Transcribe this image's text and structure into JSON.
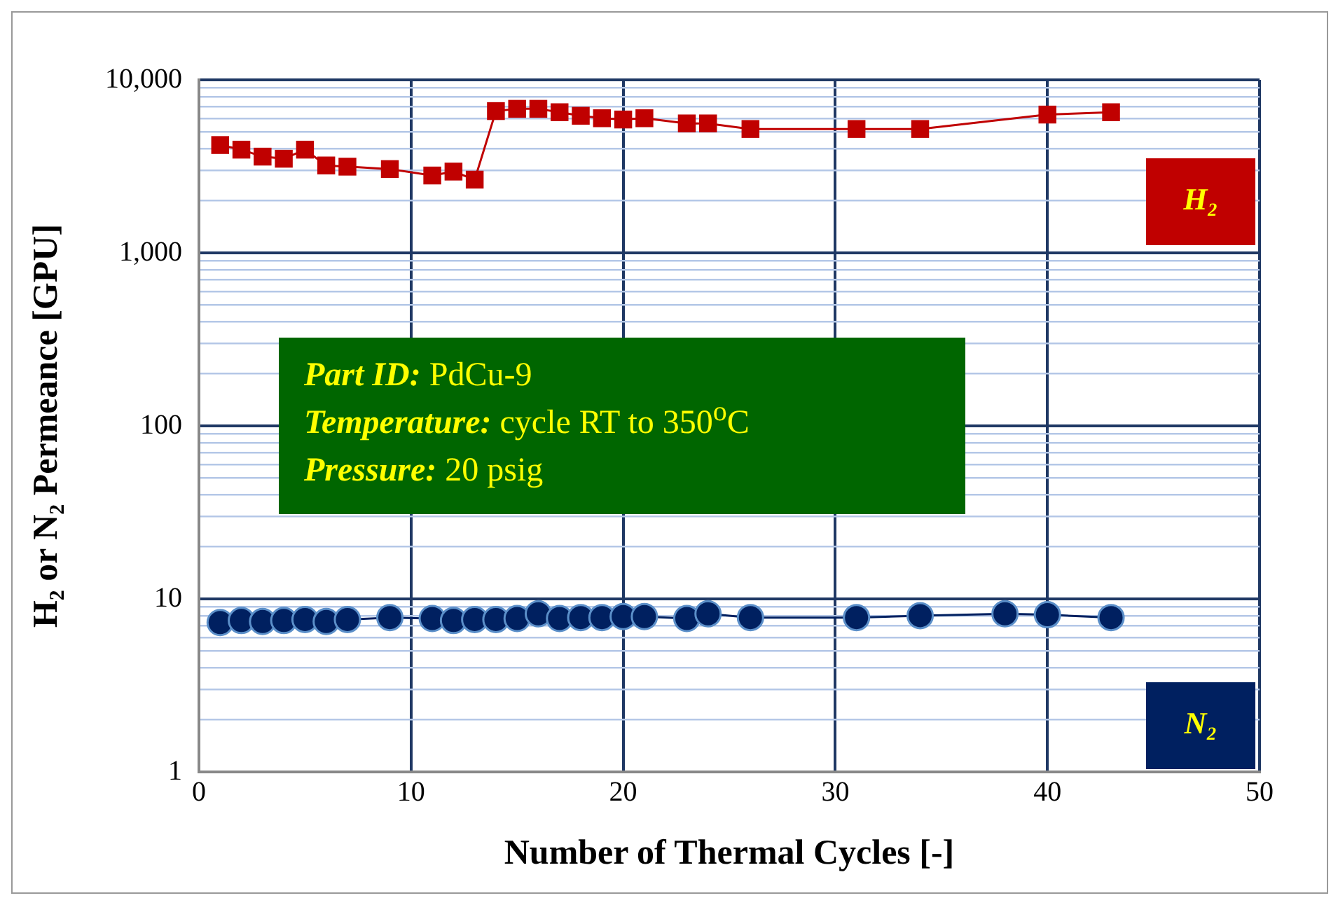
{
  "chart_data": {
    "type": "line",
    "xlabel": "Number of Thermal Cycles [-]",
    "ylabel": "H₂ or N₂ Permeance [GPU]",
    "log": "y",
    "grid": true,
    "legend": false,
    "xlim": [
      0,
      50
    ],
    "xticks": [
      0,
      10,
      20,
      30,
      40,
      50
    ],
    "ylim": [
      1,
      10000
    ],
    "yticks": [
      1,
      {
        "value": 2,
        "label": null
      },
      {
        "value": 3,
        "label": null
      },
      {
        "value": 4,
        "label": null
      },
      {
        "value": 5,
        "label": null
      },
      {
        "value": 6,
        "label": null
      },
      {
        "value": 7,
        "label": null
      },
      {
        "value": 8,
        "label": null
      },
      {
        "value": 9,
        "label": null
      },
      10,
      {
        "value": 20,
        "label": null
      },
      {
        "value": 30,
        "label": null
      },
      {
        "value": 40,
        "label": null
      },
      {
        "value": 50,
        "label": null
      },
      {
        "value": 60,
        "label": null
      },
      {
        "value": 70,
        "label": null
      },
      {
        "value": 80,
        "label": null
      },
      {
        "value": 90,
        "label": null
      },
      100,
      {
        "value": 200,
        "label": null
      },
      {
        "value": 300,
        "label": null
      },
      {
        "value": 400,
        "label": null
      },
      {
        "value": 500,
        "label": null
      },
      {
        "value": 600,
        "label": null
      },
      {
        "value": 700,
        "label": null
      },
      {
        "value": 800,
        "label": null
      },
      {
        "value": 900,
        "label": null
      },
      {
        "value": 1000,
        "label": "1,000"
      },
      {
        "value": 2000,
        "label": null
      },
      {
        "value": 3000,
        "label": null
      },
      {
        "value": 4000,
        "label": null
      },
      {
        "value": 5000,
        "label": null
      },
      {
        "value": 6000,
        "label": null
      },
      {
        "value": 7000,
        "label": null
      },
      {
        "value": 8000,
        "label": null
      },
      {
        "value": 9000,
        "label": null
      },
      {
        "value": 10000,
        "label": "10,000"
      }
    ],
    "series": [
      {
        "name": "H₂",
        "color": "#c00000",
        "marker": "square",
        "x": [
          1,
          2,
          3,
          4,
          5,
          6,
          7,
          9,
          11,
          12,
          13,
          14,
          15,
          16,
          17,
          18,
          19,
          20,
          21,
          23,
          24,
          26,
          31,
          34,
          40,
          43
        ],
        "values": [
          4200,
          3950,
          3600,
          3500,
          3950,
          3200,
          3150,
          3050,
          2800,
          2950,
          2650,
          6600,
          6800,
          6800,
          6500,
          6200,
          6000,
          5900,
          6000,
          5600,
          5600,
          5200,
          5200,
          5200,
          6300,
          6500
        ]
      },
      {
        "name": "N₂",
        "color": "#002060",
        "marker": "circle",
        "x": [
          1,
          2,
          3,
          4,
          5,
          6,
          7,
          9,
          11,
          12,
          13,
          14,
          15,
          16,
          17,
          18,
          19,
          20,
          21,
          23,
          24,
          26,
          31,
          34,
          38,
          40,
          43
        ],
        "values": [
          7.3,
          7.5,
          7.4,
          7.5,
          7.6,
          7.4,
          7.6,
          7.8,
          7.7,
          7.5,
          7.6,
          7.6,
          7.7,
          8.2,
          7.7,
          7.8,
          7.8,
          7.9,
          7.9,
          7.7,
          8.2,
          7.8,
          7.8,
          8.0,
          8.2,
          8.1,
          7.8
        ]
      }
    ],
    "annotations": [
      "Part ID:  PdCu-9",
      "Temperature:  cycle RT to 350$^{o}$C",
      "Pressure:  20 psig"
    ]
  }
}
